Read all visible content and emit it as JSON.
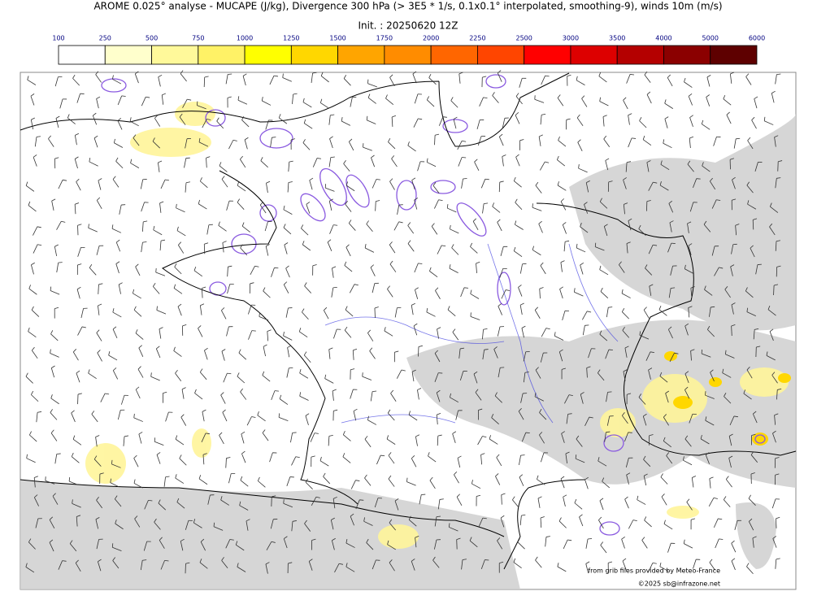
{
  "header": {
    "title": "AROME 0.025° analyse - MUCAPE (J/kg), Divergence 300 hPa (> 3E5 * 1/s, 0.1x0.1° interpolated, smoothing-9), winds 10m (m/s)",
    "init": "Init. : 20250620 12Z"
  },
  "colorbar": {
    "ticks": [
      100,
      250,
      500,
      750,
      1000,
      1250,
      1500,
      1750,
      2000,
      2250,
      2500,
      3000,
      3500,
      4000,
      5000,
      6000
    ],
    "colors": [
      "#ffffff",
      "#ffffcc",
      "#fff99a",
      "#fff266",
      "#ffff00",
      "#ffd700",
      "#ffa500",
      "#ff8c00",
      "#ff6600",
      "#ff4500",
      "#ff0000",
      "#dd0000",
      "#b40000",
      "#8b0000",
      "#5e0000"
    ]
  },
  "credits": {
    "source": "from grib files provided by Meteo-France",
    "copyright": "©2025 sb@infrazone.net"
  }
}
